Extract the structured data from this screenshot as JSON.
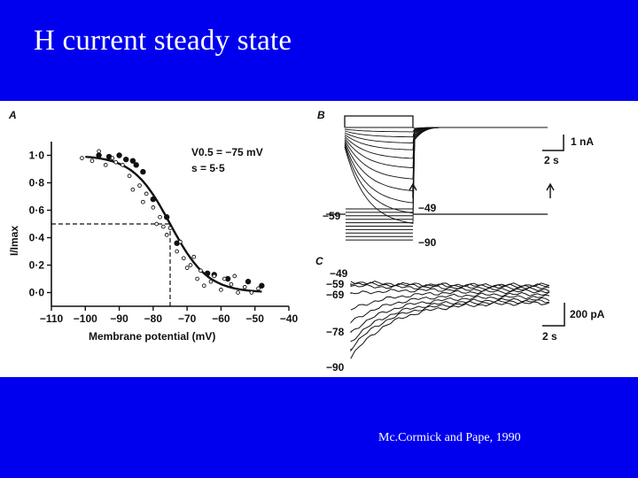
{
  "slide": {
    "title": "H current steady state",
    "citation": "Mc.Cormick and Pape, 1990"
  },
  "colors": {
    "background": "#0000ee",
    "figure_background": "#ffffff",
    "ink": "#111111"
  },
  "panels": {
    "a": {
      "label": "A",
      "y_axis_label": "I/Imax",
      "x_axis_label": "Membrane potential (mV)",
      "annotation_v": "V0.5 = −75 mV",
      "annotation_s": "s = 5·5"
    },
    "b": {
      "label": "B",
      "scale_current": "1 nA",
      "scale_time": "2 s",
      "holding_label": "−59",
      "step_top_label": "−49",
      "step_bottom_label": "−90"
    },
    "c": {
      "label": "C",
      "trace_labels": [
        "−49",
        "−59",
        "−69",
        "−78",
        "−90"
      ],
      "scale_current": "200 pA",
      "scale_time": "2 s"
    }
  },
  "chart_data": {
    "type": "scatter",
    "title": "",
    "xlabel": "Membrane potential (mV)",
    "ylabel": "I/Imax",
    "xlim": [
      -110,
      -40
    ],
    "ylim": [
      -0.1,
      1.1
    ],
    "x_ticks": [
      -110,
      -100,
      -90,
      -80,
      -70,
      -60,
      -50,
      -40
    ],
    "x_tick_labels": [
      "−110",
      "−100",
      "−90",
      "−80",
      "−70",
      "−60",
      "−50",
      "−40"
    ],
    "y_ticks": [
      0.0,
      0.2,
      0.4,
      0.6,
      0.8,
      1.0
    ],
    "y_tick_labels": [
      "0·0",
      "0·2",
      "0·4",
      "0·6",
      "0·8",
      "1·0"
    ],
    "v_half": -75,
    "slope": 5.5,
    "series": [
      {
        "marker": "filled",
        "x": [
          -96,
          -93,
          -90,
          -88,
          -86,
          -85,
          -83,
          -80,
          -76,
          -73,
          -64,
          -62,
          -58,
          -52,
          -48
        ],
        "y": [
          1.0,
          0.99,
          1.0,
          0.97,
          0.96,
          0.93,
          0.88,
          0.68,
          0.55,
          0.36,
          0.14,
          0.13,
          0.1,
          0.08,
          0.05
        ]
      },
      {
        "marker": "open",
        "x": [
          -101,
          -98,
          -96,
          -94,
          -92,
          -91,
          -89,
          -87,
          -86,
          -84,
          -83,
          -82,
          -80,
          -79,
          -78,
          -77,
          -76,
          -75,
          -73,
          -72,
          -71,
          -70,
          -69,
          -68,
          -67,
          -66,
          -65,
          -63,
          -62,
          -60,
          -59,
          -57,
          -56,
          -55,
          -53,
          -51,
          -49
        ],
        "y": [
          0.98,
          0.96,
          1.03,
          0.93,
          0.98,
          0.95,
          0.93,
          0.85,
          0.75,
          0.78,
          0.66,
          0.72,
          0.62,
          0.5,
          0.55,
          0.48,
          0.42,
          0.47,
          0.3,
          0.37,
          0.25,
          0.18,
          0.2,
          0.26,
          0.1,
          0.16,
          0.05,
          0.08,
          0.12,
          0.02,
          0.1,
          0.06,
          0.12,
          0.0,
          0.04,
          0.0,
          0.03
        ]
      }
    ],
    "fit": {
      "type": "boltzmann",
      "v_half": -75,
      "slope": 5.5
    },
    "reference_lines": {
      "y": 0.5,
      "x": -75
    }
  }
}
